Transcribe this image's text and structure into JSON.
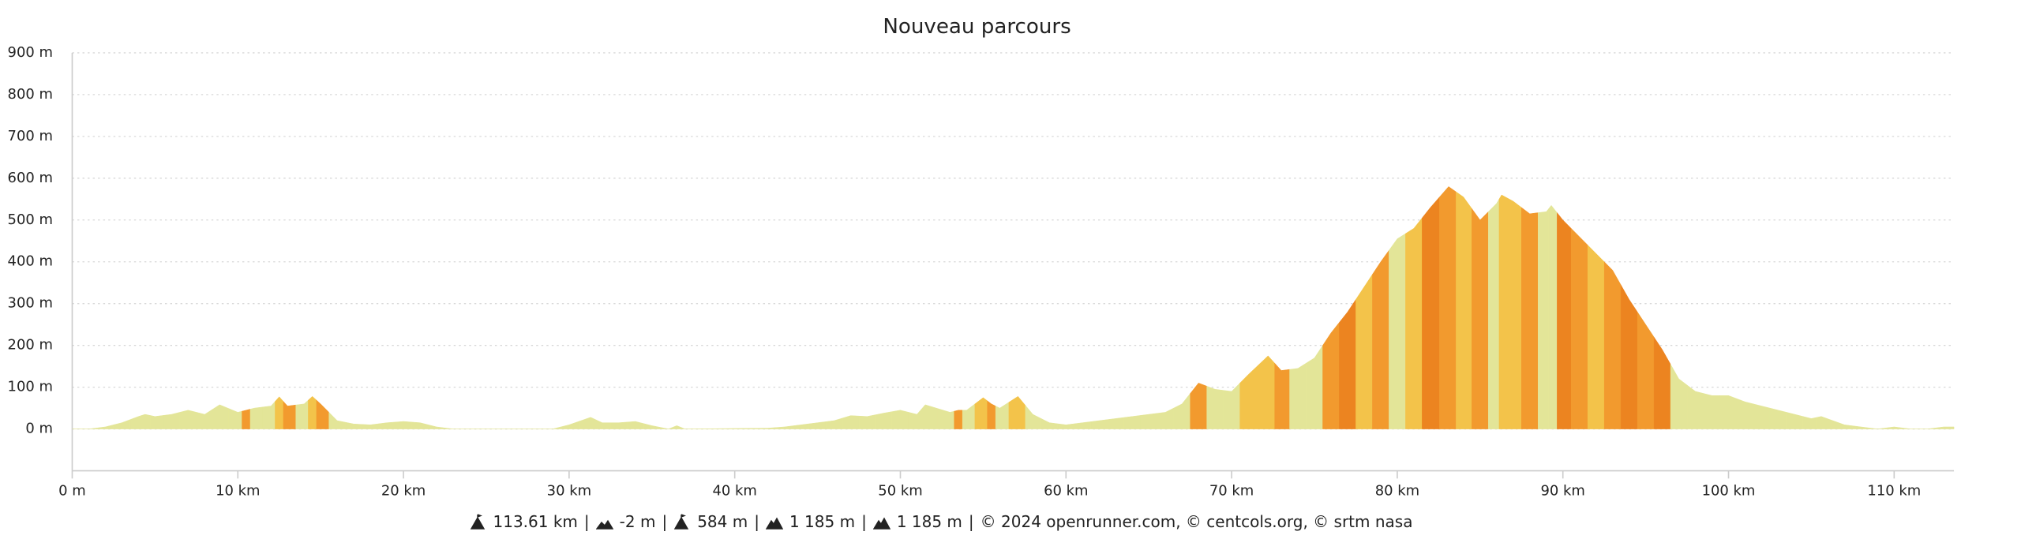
{
  "chart_data": {
    "type": "area",
    "title": "Nouveau parcours",
    "x": [
      0,
      1,
      2,
      3,
      4,
      4.4,
      5,
      6,
      7,
      8,
      8.9,
      10,
      10.5,
      11,
      12,
      12.5,
      13,
      14,
      14.5,
      15,
      16,
      17,
      18,
      19,
      20,
      21,
      22,
      23,
      29,
      30,
      31.3,
      32,
      33,
      34,
      35,
      36,
      36.5,
      37,
      42,
      43,
      44,
      45,
      46,
      47,
      48,
      49,
      50,
      51,
      51.5,
      53,
      53.5,
      54,
      55,
      55.5,
      56,
      57.1,
      58,
      59,
      60,
      61,
      62,
      63,
      64,
      65,
      66,
      67,
      68,
      69,
      70,
      71,
      72.2,
      73,
      74,
      75,
      76,
      77,
      78,
      79,
      80,
      81,
      82,
      83.1,
      84,
      85,
      86,
      86.3,
      87,
      88,
      89,
      89.3,
      90,
      91,
      92,
      93,
      94,
      95,
      96,
      97,
      98,
      99,
      100,
      101,
      102,
      103,
      104,
      105,
      105.6,
      107,
      108,
      109,
      110,
      111,
      112,
      113,
      113.61
    ],
    "values": [
      0,
      0,
      5,
      15,
      30,
      35,
      30,
      35,
      45,
      35,
      58,
      40,
      45,
      50,
      55,
      77,
      55,
      60,
      78,
      60,
      20,
      12,
      10,
      15,
      18,
      15,
      5,
      0,
      0,
      10,
      28,
      15,
      15,
      18,
      8,
      0,
      8,
      0,
      2,
      5,
      10,
      15,
      20,
      32,
      30,
      38,
      45,
      35,
      58,
      40,
      45,
      45,
      75,
      60,
      50,
      78,
      35,
      15,
      10,
      15,
      20,
      25,
      30,
      35,
      40,
      60,
      110,
      95,
      90,
      130,
      175,
      140,
      145,
      170,
      230,
      280,
      340,
      400,
      455,
      480,
      530,
      580,
      555,
      500,
      540,
      560,
      545,
      515,
      520,
      535,
      500,
      460,
      420,
      380,
      310,
      250,
      190,
      120,
      90,
      80,
      80,
      65,
      55,
      45,
      35,
      25,
      30,
      10,
      5,
      0,
      5,
      0,
      0,
      5,
      5
    ],
    "colors": [
      "#e3e598",
      "#e3e598",
      "#e3e598",
      "#e3e598",
      "#e3e598",
      "#e3e598",
      "#e3e598",
      "#e3e598",
      "#e3e598",
      "#e3e598",
      "#e3e598",
      "#e3e598",
      "#f29a2e",
      "#e3e598",
      "#e3e598",
      "#f3c34a",
      "#f29a2e",
      "#e3e598",
      "#f3c34a",
      "#f29a2e",
      "#e3e598",
      "#e3e598",
      "#e3e598",
      "#e3e598",
      "#e3e598",
      "#e3e598",
      "#e3e598",
      "#e3e598",
      "#e3e598",
      "#e3e598",
      "#e3e598",
      "#e3e598",
      "#e3e598",
      "#e3e598",
      "#e3e598",
      "#e3e598",
      "#e3e598",
      "#e3e598",
      "#e3e598",
      "#e3e598",
      "#e3e598",
      "#e3e598",
      "#e3e598",
      "#e3e598",
      "#e3e598",
      "#e3e598",
      "#e3e598",
      "#e3e598",
      "#e3e598",
      "#e3e598",
      "#f29a2e",
      "#e3e598",
      "#f3c34a",
      "#f29a2e",
      "#e3e598",
      "#f3c34a",
      "#e3e598",
      "#e3e598",
      "#e3e598",
      "#e3e598",
      "#e3e598",
      "#e3e598",
      "#e3e598",
      "#e3e598",
      "#e3e598",
      "#e3e598",
      "#f29a2e",
      "#e3e598",
      "#e3e598",
      "#f3c34a",
      "#f3c34a",
      "#f29a2e",
      "#e3e598",
      "#e3e598",
      "#f29a2e",
      "#ec8420",
      "#f3c34a",
      "#f29a2e",
      "#e3e598",
      "#f3c34a",
      "#ec8420",
      "#f29a2e",
      "#f3c34a",
      "#f29a2e",
      "#e3e598",
      "#f3c34a",
      "#f3c34a",
      "#f29a2e",
      "#e3e598",
      "#e3e598",
      "#ec8420",
      "#f29a2e",
      "#f3c34a",
      "#f29a2e",
      "#ec8420",
      "#f29a2e",
      "#ec8420",
      "#e3e598",
      "#e3e598",
      "#e3e598",
      "#e3e598",
      "#e3e598",
      "#e3e598",
      "#e3e598",
      "#e3e598",
      "#e3e598",
      "#e3e598",
      "#e3e598",
      "#e3e598",
      "#e3e598",
      "#e3e598",
      "#e3e598",
      "#e3e598",
      "#e3e598",
      "#e3e598"
    ],
    "xlim": [
      0,
      113.61
    ],
    "ylim": [
      -100,
      900
    ],
    "xticks": [
      {
        "value": 0,
        "label": "0 m"
      },
      {
        "value": 10,
        "label": "10 km"
      },
      {
        "value": 20,
        "label": "20 km"
      },
      {
        "value": 30,
        "label": "30 km"
      },
      {
        "value": 40,
        "label": "40 km"
      },
      {
        "value": 50,
        "label": "50 km"
      },
      {
        "value": 60,
        "label": "60 km"
      },
      {
        "value": 70,
        "label": "70 km"
      },
      {
        "value": 80,
        "label": "80 km"
      },
      {
        "value": 90,
        "label": "90 km"
      },
      {
        "value": 100,
        "label": "100 km"
      },
      {
        "value": 110,
        "label": "110 km"
      }
    ],
    "yticks": [
      {
        "value": 0,
        "label": "0 m"
      },
      {
        "value": 100,
        "label": "100 m"
      },
      {
        "value": 200,
        "label": "200 m"
      },
      {
        "value": 300,
        "label": "300 m"
      },
      {
        "value": 400,
        "label": "400 m"
      },
      {
        "value": 500,
        "label": "500 m"
      },
      {
        "value": 600,
        "label": "600 m"
      },
      {
        "value": 700,
        "label": "700 m"
      },
      {
        "value": 800,
        "label": "800 m"
      },
      {
        "value": 900,
        "label": "900 m"
      }
    ],
    "grid": true,
    "stats": [
      "113.61 km",
      "-2 m",
      "584 m",
      "1 185 m",
      "1 185 m"
    ],
    "separator": "|",
    "credits": "© 2024 openrunner.com, © centcols.org, © srtm nasa"
  }
}
